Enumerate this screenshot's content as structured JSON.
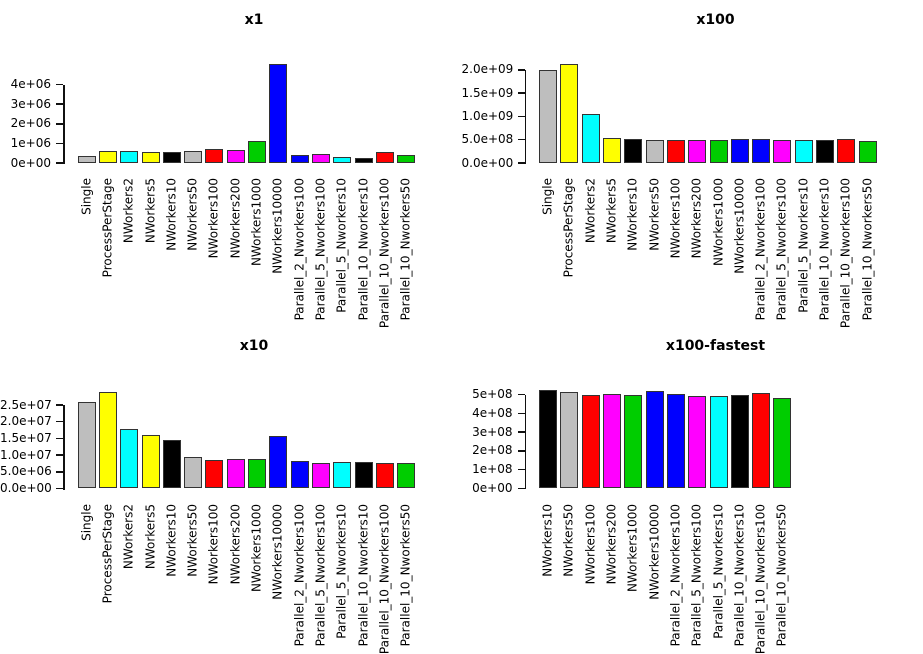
{
  "figure": {
    "layout": "2x2-barplot-grid",
    "background": "#ffffff",
    "palette": {
      "gray": "#BEBEBE",
      "yellow": "#FFFF00",
      "cyan": "#00FFFF",
      "black": "#000000",
      "red": "#FF0000",
      "magenta": "#FF00FF",
      "green": "#00CD00",
      "blue": "#0000FF"
    }
  },
  "chart_data": [
    {
      "type": "bar",
      "title": "x1",
      "position": "top-left",
      "grid": false,
      "legend": null,
      "xlabel": "",
      "ylabel": "",
      "ylim": [
        0,
        5100000
      ],
      "ytick_labels": [
        "0e+00",
        "1e+06",
        "2e+06",
        "3e+06",
        "4e+06"
      ],
      "ytick_values": [
        0,
        1000000,
        2000000,
        3000000,
        4000000
      ],
      "categories": [
        "Single",
        "ProcessPerStage",
        "NWorkers2",
        "NWorkers5",
        "NWorkers10",
        "NWorkers50",
        "NWorkers100",
        "NWorkers200",
        "NWorkers1000",
        "NWorkers10000",
        "Parallel_2_Nworkers100",
        "Parallel_5_Nworkers100",
        "Parallel_5_Nworkers10",
        "Parallel_10_Nworkers10",
        "Parallel_10_Nworkers100",
        "Parallel_10_Nworkers50"
      ],
      "values": [
        380000,
        620000,
        600000,
        570000,
        540000,
        600000,
        700000,
        670000,
        1130000,
        5050000,
        430000,
        470000,
        300000,
        280000,
        540000,
        410000
      ],
      "bar_colors": [
        "#BEBEBE",
        "#FFFF00",
        "#00FFFF",
        "#FFFF00",
        "#000000",
        "#BEBEBE",
        "#FF0000",
        "#FF00FF",
        "#00CD00",
        "#0000FF",
        "#0000FF",
        "#FF00FF",
        "#00FFFF",
        "#000000",
        "#FF0000",
        "#00CD00"
      ]
    },
    {
      "type": "bar",
      "title": "x100",
      "position": "top-right",
      "grid": false,
      "legend": null,
      "xlabel": "",
      "ylabel": "",
      "ylim": [
        0,
        2150000000
      ],
      "ytick_labels": [
        "0.0e+00",
        "5.0e+08",
        "1.0e+09",
        "1.5e+09",
        "2.0e+09"
      ],
      "ytick_values": [
        0,
        500000000,
        1000000000,
        1500000000,
        2000000000
      ],
      "categories": [
        "Single",
        "ProcessPerStage",
        "NWorkers2",
        "NWorkers5",
        "NWorkers10",
        "NWorkers50",
        "NWorkers100",
        "NWorkers200",
        "NWorkers1000",
        "NWorkers10000",
        "Parallel_2_Nworkers100",
        "Parallel_5_Nworkers100",
        "Parallel_5_Nworkers10",
        "Parallel_10_Nworkers10",
        "Parallel_10_Nworkers100",
        "Parallel_10_Nworkers50"
      ],
      "values": [
        2000000000,
        2120000000,
        1060000000,
        545000000,
        515000000,
        495000000,
        490000000,
        500000000,
        500000000,
        515000000,
        505000000,
        495000000,
        490000000,
        500000000,
        510000000,
        470000000
      ],
      "bar_colors": [
        "#BEBEBE",
        "#FFFF00",
        "#00FFFF",
        "#FFFF00",
        "#000000",
        "#BEBEBE",
        "#FF0000",
        "#FF00FF",
        "#00CD00",
        "#0000FF",
        "#0000FF",
        "#FF00FF",
        "#00FFFF",
        "#000000",
        "#FF0000",
        "#00CD00"
      ]
    },
    {
      "type": "bar",
      "title": "x10",
      "position": "bottom-left",
      "grid": false,
      "legend": null,
      "xlabel": "",
      "ylabel": "",
      "ylim": [
        0,
        29500000
      ],
      "ytick_labels": [
        "0.0e+00",
        "5.0e+06",
        "1.0e+07",
        "1.5e+07",
        "2.0e+07",
        "2.5e+07"
      ],
      "ytick_values": [
        0,
        5000000,
        10000000,
        15000000,
        20000000,
        25000000
      ],
      "categories": [
        "Single",
        "ProcessPerStage",
        "NWorkers2",
        "NWorkers5",
        "NWorkers10",
        "NWorkers50",
        "NWorkers100",
        "NWorkers200",
        "NWorkers1000",
        "NWorkers10000",
        "Parallel_2_Nworkers100",
        "Parallel_5_Nworkers100",
        "Parallel_5_Nworkers10",
        "Parallel_10_Nworkers10",
        "Parallel_10_Nworkers100",
        "Parallel_10_Nworkers50"
      ],
      "values": [
        26000000,
        29000000,
        17700000,
        16100000,
        14400000,
        9500000,
        8600000,
        8700000,
        8800000,
        15800000,
        8100000,
        7700000,
        7900000,
        7800000,
        7600000,
        7600000
      ],
      "bar_colors": [
        "#BEBEBE",
        "#FFFF00",
        "#00FFFF",
        "#FFFF00",
        "#000000",
        "#BEBEBE",
        "#FF0000",
        "#FF00FF",
        "#00CD00",
        "#0000FF",
        "#0000FF",
        "#FF00FF",
        "#00FFFF",
        "#000000",
        "#FF0000",
        "#00CD00"
      ]
    },
    {
      "type": "bar",
      "title": "x100-fastest",
      "position": "bottom-right",
      "grid": false,
      "legend": null,
      "xlabel": "",
      "ylabel": "",
      "ylim": [
        0,
        530000000
      ],
      "ytick_labels": [
        "0e+00",
        "1e+08",
        "2e+08",
        "3e+08",
        "4e+08",
        "5e+08"
      ],
      "ytick_values": [
        0,
        100000000,
        200000000,
        300000000,
        400000000,
        500000000
      ],
      "categories": [
        "NWorkers10",
        "NWorkers50",
        "NWorkers100",
        "NWorkers200",
        "NWorkers1000",
        "NWorkers10000",
        "Parallel_2_Nworkers100",
        "Parallel_5_Nworkers100",
        "Parallel_5_Nworkers10",
        "Parallel_10_Nworkers10",
        "Parallel_10_Nworkers100",
        "Parallel_10_Nworkers50"
      ],
      "values": [
        525000000,
        515000000,
        497000000,
        505000000,
        500000000,
        520000000,
        503000000,
        492000000,
        493000000,
        500000000,
        510000000,
        480000000
      ],
      "bar_colors": [
        "#000000",
        "#BEBEBE",
        "#FF0000",
        "#FF00FF",
        "#00CD00",
        "#0000FF",
        "#0000FF",
        "#FF00FF",
        "#00FFFF",
        "#000000",
        "#FF0000",
        "#00CD00"
      ]
    }
  ]
}
